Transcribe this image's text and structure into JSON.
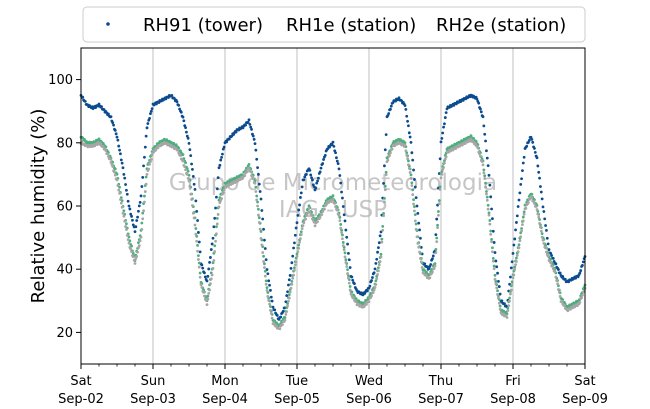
{
  "chart_data": {
    "type": "scatter",
    "title": "",
    "xlabel": "",
    "ylabel": "Relative humidity (%)",
    "ylim": [
      10,
      110
    ],
    "yticks": [
      20,
      40,
      60,
      80,
      100
    ],
    "xlim": [
      "2017-09-02 00:00",
      "2017-09-09 00:00"
    ],
    "xticks": [
      {
        "day": "Sat",
        "date": "Sep-02"
      },
      {
        "day": "Sun",
        "date": "Sep-03"
      },
      {
        "day": "Mon",
        "date": "Sep-04"
      },
      {
        "day": "Tue",
        "date": "Sep-05"
      },
      {
        "day": "Wed",
        "date": "Sep-06"
      },
      {
        "day": "Thu",
        "date": "Sep-07"
      },
      {
        "day": "Fri",
        "date": "Sep-08"
      },
      {
        "day": "Sat",
        "date": "Sep-09"
      }
    ],
    "grid": "vertical",
    "legend_position": "top",
    "watermark": [
      "Grupo de Micrometeorologia",
      "IAG - USP"
    ],
    "series": [
      {
        "name": "RH91 (tower)",
        "color": "#0b4b8f",
        "x": [
          "2017-09-02 00:00",
          "2017-09-02 02:00",
          "2017-09-02 04:00",
          "2017-09-02 06:00",
          "2017-09-02 08:00",
          "2017-09-02 10:00",
          "2017-09-02 12:00",
          "2017-09-02 14:00",
          "2017-09-02 16:00",
          "2017-09-02 18:00",
          "2017-09-02 20:00",
          "2017-09-02 22:00",
          "2017-09-03 00:00",
          "2017-09-03 02:00",
          "2017-09-03 04:00",
          "2017-09-03 06:00",
          "2017-09-03 08:00",
          "2017-09-03 10:00",
          "2017-09-03 12:00",
          "2017-09-03 14:00",
          "2017-09-03 16:00",
          "2017-09-03 18:00",
          "2017-09-03 20:00",
          "2017-09-03 22:00",
          "2017-09-04 00:00",
          "2017-09-04 02:00",
          "2017-09-04 04:00",
          "2017-09-04 06:00",
          "2017-09-04 08:00",
          "2017-09-04 10:00",
          "2017-09-04 12:00",
          "2017-09-04 14:00",
          "2017-09-04 16:00",
          "2017-09-04 18:00",
          "2017-09-04 20:00",
          "2017-09-04 22:00",
          "2017-09-05 00:00",
          "2017-09-05 02:00",
          "2017-09-05 04:00",
          "2017-09-05 06:00",
          "2017-09-05 08:00",
          "2017-09-05 10:00",
          "2017-09-05 12:00",
          "2017-09-05 14:00",
          "2017-09-05 16:00",
          "2017-09-05 18:00",
          "2017-09-05 20:00",
          "2017-09-05 22:00",
          "2017-09-06 00:00",
          "2017-09-06 02:00",
          "2017-09-06 04:00",
          "2017-09-06 06:00",
          "2017-09-06 08:00",
          "2017-09-06 10:00",
          "2017-09-06 12:00",
          "2017-09-06 14:00",
          "2017-09-06 16:00",
          "2017-09-06 18:00",
          "2017-09-06 20:00",
          "2017-09-06 22:00",
          "2017-09-07 00:00",
          "2017-09-07 02:00",
          "2017-09-07 04:00",
          "2017-09-07 06:00",
          "2017-09-07 08:00",
          "2017-09-07 10:00",
          "2017-09-07 12:00",
          "2017-09-07 14:00",
          "2017-09-07 16:00",
          "2017-09-07 18:00",
          "2017-09-07 20:00",
          "2017-09-07 22:00",
          "2017-09-08 00:00",
          "2017-09-08 02:00",
          "2017-09-08 04:00",
          "2017-09-08 06:00",
          "2017-09-08 08:00",
          "2017-09-08 10:00",
          "2017-09-08 12:00",
          "2017-09-08 14:00",
          "2017-09-08 16:00",
          "2017-09-08 18:00",
          "2017-09-08 20:00",
          "2017-09-08 22:00",
          "2017-09-09 00:00"
        ],
        "y": [
          95,
          92,
          91,
          92,
          90,
          88,
          82,
          72,
          60,
          52,
          63,
          85,
          92,
          93,
          94,
          95,
          93,
          88,
          80,
          65,
          42,
          36,
          50,
          72,
          80,
          82,
          84,
          85,
          87,
          80,
          62,
          40,
          28,
          24,
          28,
          40,
          55,
          68,
          72,
          65,
          72,
          78,
          80,
          72,
          55,
          38,
          33,
          32,
          34,
          40,
          52,
          88,
          93,
          94,
          92,
          80,
          60,
          42,
          40,
          46,
          80,
          91,
          92,
          93,
          94,
          95,
          94,
          88,
          70,
          45,
          30,
          28,
          45,
          62,
          78,
          82,
          75,
          60,
          46,
          42,
          38,
          36,
          37,
          38,
          44
        ]
      },
      {
        "name": "RH1e (station)",
        "color": "#4caf7d",
        "x": [
          "2017-09-02 00:00",
          "2017-09-02 02:00",
          "2017-09-02 04:00",
          "2017-09-02 06:00",
          "2017-09-02 08:00",
          "2017-09-02 10:00",
          "2017-09-02 12:00",
          "2017-09-02 14:00",
          "2017-09-02 16:00",
          "2017-09-02 18:00",
          "2017-09-02 20:00",
          "2017-09-02 22:00",
          "2017-09-03 00:00",
          "2017-09-03 02:00",
          "2017-09-03 04:00",
          "2017-09-03 06:00",
          "2017-09-03 08:00",
          "2017-09-03 10:00",
          "2017-09-03 12:00",
          "2017-09-03 14:00",
          "2017-09-03 16:00",
          "2017-09-03 18:00",
          "2017-09-03 20:00",
          "2017-09-03 22:00",
          "2017-09-04 00:00",
          "2017-09-04 02:00",
          "2017-09-04 04:00",
          "2017-09-04 06:00",
          "2017-09-04 08:00",
          "2017-09-04 10:00",
          "2017-09-04 12:00",
          "2017-09-04 14:00",
          "2017-09-04 16:00",
          "2017-09-04 18:00",
          "2017-09-04 20:00",
          "2017-09-04 22:00",
          "2017-09-05 00:00",
          "2017-09-05 02:00",
          "2017-09-05 04:00",
          "2017-09-05 06:00",
          "2017-09-05 08:00",
          "2017-09-05 10:00",
          "2017-09-05 12:00",
          "2017-09-05 14:00",
          "2017-09-05 16:00",
          "2017-09-05 18:00",
          "2017-09-05 20:00",
          "2017-09-05 22:00",
          "2017-09-06 00:00",
          "2017-09-06 02:00",
          "2017-09-06 04:00",
          "2017-09-06 06:00",
          "2017-09-06 08:00",
          "2017-09-06 10:00",
          "2017-09-06 12:00",
          "2017-09-06 14:00",
          "2017-09-06 16:00",
          "2017-09-06 18:00",
          "2017-09-06 20:00",
          "2017-09-06 22:00",
          "2017-09-07 00:00",
          "2017-09-07 02:00",
          "2017-09-07 04:00",
          "2017-09-07 06:00",
          "2017-09-07 08:00",
          "2017-09-07 10:00",
          "2017-09-07 12:00",
          "2017-09-07 14:00",
          "2017-09-07 16:00",
          "2017-09-07 18:00",
          "2017-09-07 20:00",
          "2017-09-07 22:00",
          "2017-09-08 00:00",
          "2017-09-08 02:00",
          "2017-09-08 04:00",
          "2017-09-08 06:00",
          "2017-09-08 08:00",
          "2017-09-08 10:00",
          "2017-09-08 12:00",
          "2017-09-08 14:00",
          "2017-09-08 16:00",
          "2017-09-08 18:00",
          "2017-09-08 20:00",
          "2017-09-08 22:00",
          "2017-09-09 00:00"
        ],
        "y": [
          82,
          80,
          80,
          81,
          79,
          75,
          70,
          60,
          50,
          43,
          52,
          72,
          78,
          80,
          81,
          80,
          79,
          76,
          70,
          56,
          36,
          30,
          42,
          62,
          67,
          68,
          69,
          70,
          73,
          68,
          52,
          34,
          24,
          22,
          25,
          35,
          45,
          55,
          60,
          55,
          58,
          62,
          63,
          58,
          45,
          33,
          30,
          29,
          31,
          35,
          45,
          75,
          80,
          81,
          80,
          70,
          52,
          40,
          38,
          42,
          70,
          78,
          79,
          80,
          81,
          82,
          80,
          74,
          58,
          38,
          27,
          26,
          38,
          48,
          60,
          64,
          60,
          50,
          44,
          40,
          31,
          28,
          29,
          30,
          35
        ]
      },
      {
        "name": "RH2e (station)",
        "color": "#a6a6a6",
        "x": [
          "2017-09-02 00:00",
          "2017-09-02 02:00",
          "2017-09-02 04:00",
          "2017-09-02 06:00",
          "2017-09-02 08:00",
          "2017-09-02 10:00",
          "2017-09-02 12:00",
          "2017-09-02 14:00",
          "2017-09-02 16:00",
          "2017-09-02 18:00",
          "2017-09-02 20:00",
          "2017-09-02 22:00",
          "2017-09-03 00:00",
          "2017-09-03 02:00",
          "2017-09-03 04:00",
          "2017-09-03 06:00",
          "2017-09-03 08:00",
          "2017-09-03 10:00",
          "2017-09-03 12:00",
          "2017-09-03 14:00",
          "2017-09-03 16:00",
          "2017-09-03 18:00",
          "2017-09-03 20:00",
          "2017-09-03 22:00",
          "2017-09-04 00:00",
          "2017-09-04 02:00",
          "2017-09-04 04:00",
          "2017-09-04 06:00",
          "2017-09-04 08:00",
          "2017-09-04 10:00",
          "2017-09-04 12:00",
          "2017-09-04 14:00",
          "2017-09-04 16:00",
          "2017-09-04 18:00",
          "2017-09-04 20:00",
          "2017-09-04 22:00",
          "2017-09-05 00:00",
          "2017-09-05 02:00",
          "2017-09-05 04:00",
          "2017-09-05 06:00",
          "2017-09-05 08:00",
          "2017-09-05 10:00",
          "2017-09-05 12:00",
          "2017-09-05 14:00",
          "2017-09-05 16:00",
          "2017-09-05 18:00",
          "2017-09-05 20:00",
          "2017-09-05 22:00",
          "2017-09-06 00:00",
          "2017-09-06 02:00",
          "2017-09-06 04:00",
          "2017-09-06 06:00",
          "2017-09-06 08:00",
          "2017-09-06 10:00",
          "2017-09-06 12:00",
          "2017-09-06 14:00",
          "2017-09-06 16:00",
          "2017-09-06 18:00",
          "2017-09-06 20:00",
          "2017-09-06 22:00",
          "2017-09-07 00:00",
          "2017-09-07 02:00",
          "2017-09-07 04:00",
          "2017-09-07 06:00",
          "2017-09-07 08:00",
          "2017-09-07 10:00",
          "2017-09-07 12:00",
          "2017-09-07 14:00",
          "2017-09-07 16:00",
          "2017-09-07 18:00",
          "2017-09-07 20:00",
          "2017-09-07 22:00",
          "2017-09-08 00:00",
          "2017-09-08 02:00",
          "2017-09-08 04:00",
          "2017-09-08 06:00",
          "2017-09-08 08:00",
          "2017-09-08 10:00",
          "2017-09-08 12:00",
          "2017-09-08 14:00",
          "2017-09-08 16:00",
          "2017-09-08 18:00",
          "2017-09-08 20:00",
          "2017-09-08 22:00",
          "2017-09-09 00:00"
        ],
        "y": [
          80,
          79,
          79,
          80,
          78,
          74,
          68,
          58,
          48,
          42,
          50,
          70,
          77,
          79,
          80,
          79,
          78,
          74,
          68,
          54,
          35,
          29,
          40,
          60,
          66,
          67,
          68,
          69,
          72,
          67,
          50,
          33,
          23,
          21,
          24,
          34,
          44,
          54,
          59,
          54,
          57,
          61,
          62,
          57,
          44,
          32,
          29,
          28,
          30,
          34,
          44,
          74,
          79,
          80,
          79,
          69,
          50,
          39,
          37,
          41,
          69,
          77,
          78,
          79,
          80,
          81,
          79,
          73,
          57,
          37,
          26,
          25,
          37,
          47,
          59,
          63,
          59,
          49,
          43,
          39,
          30,
          27,
          28,
          29,
          34
        ]
      }
    ]
  }
}
